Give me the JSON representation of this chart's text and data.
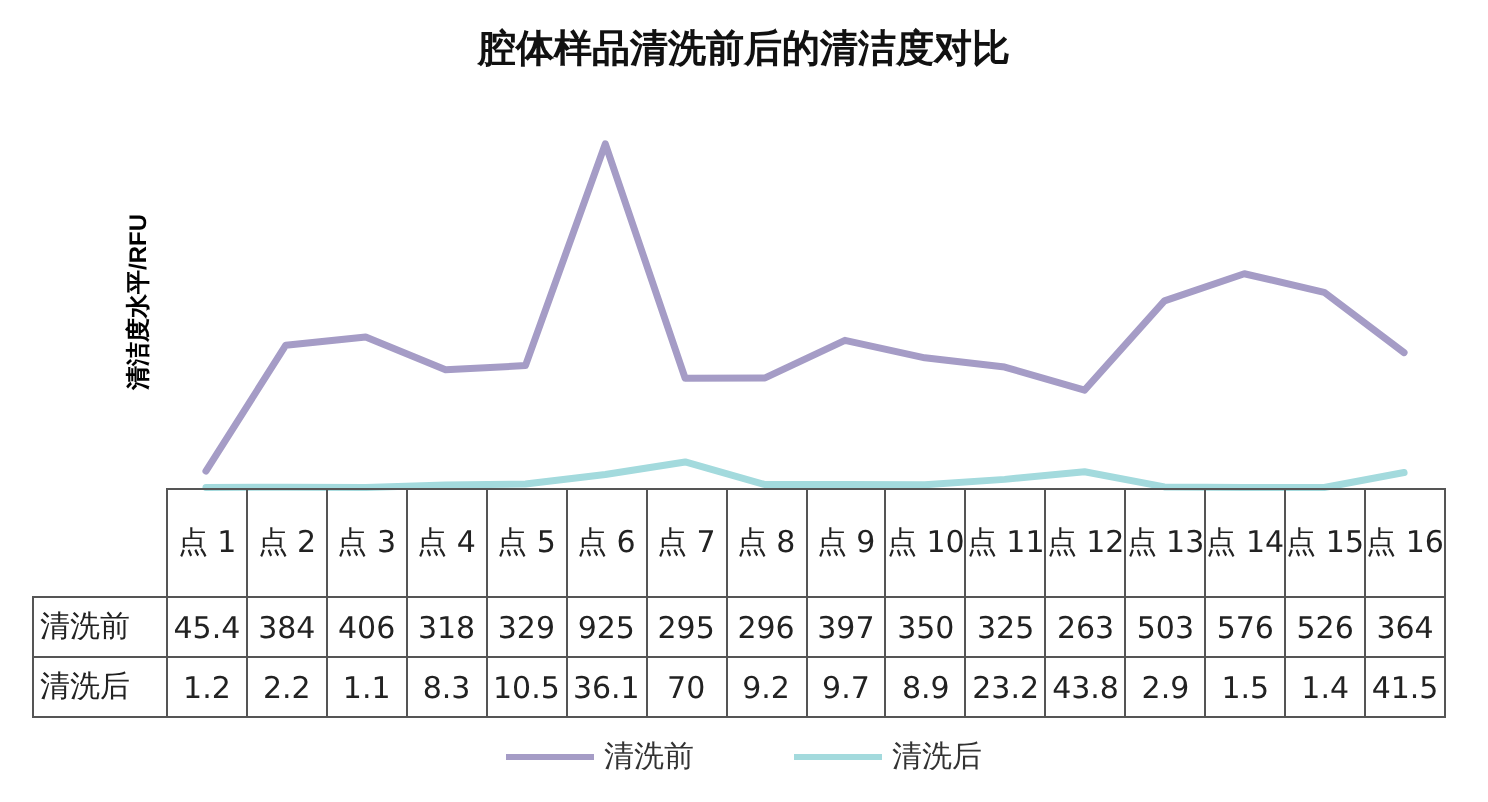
{
  "chart_data": {
    "type": "line",
    "title": "腔体样品清洗前后的清洁度对比",
    "ylabel": "清洁度水平/RFU",
    "categories": [
      "点 1",
      "点 2",
      "点 3",
      "点 4",
      "点 5",
      "点 6",
      "点 7",
      "点 8",
      "点 9",
      "点 10",
      "点 11",
      "点 12",
      "点 13",
      "点 14",
      "点 15",
      "点 16"
    ],
    "series": [
      {
        "name": "清洗前",
        "color": "#a59cc6",
        "values": [
          45.4,
          384,
          406,
          318,
          329,
          925,
          295,
          296,
          397,
          350,
          325,
          263,
          503,
          576,
          526,
          364
        ]
      },
      {
        "name": "清洗后",
        "color": "#a3dadd",
        "values": [
          1.2,
          2.2,
          1.1,
          8.3,
          10.5,
          36.1,
          70,
          9.2,
          9.7,
          8.9,
          23.2,
          43.8,
          2.9,
          1.5,
          1.4,
          41.5
        ]
      }
    ],
    "data_labels": true,
    "legend": "bottom",
    "grid": false,
    "marker": "none",
    "line_style": "solid"
  }
}
